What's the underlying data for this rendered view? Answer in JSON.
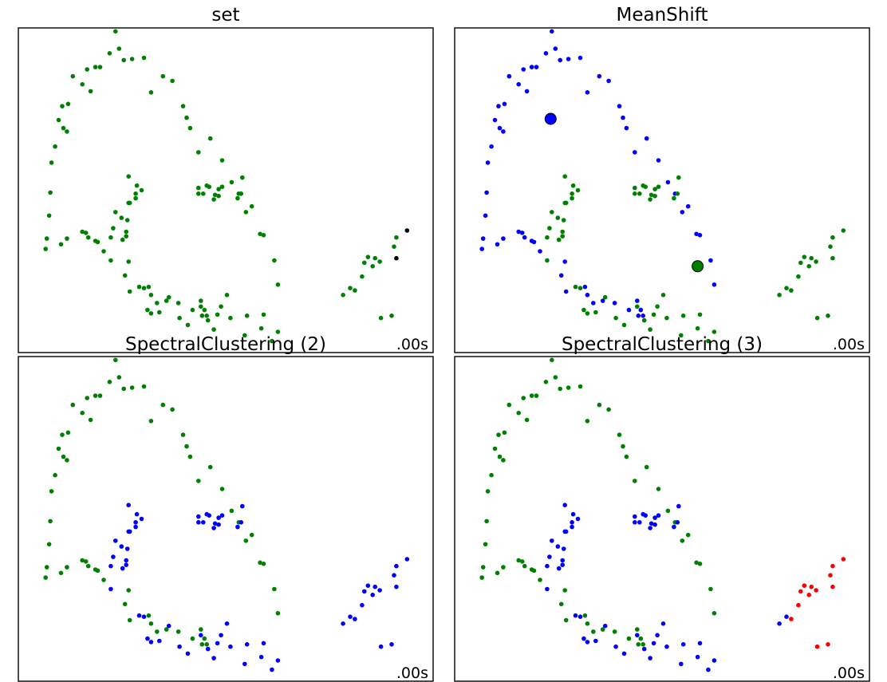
{
  "figure": {
    "background": "#ffffff"
  },
  "colors": {
    "green": "#008000",
    "blue": "#0000ff",
    "red": "#ff0000"
  },
  "points": {
    "x": [
      -0.97,
      -0.96,
      -0.94,
      -0.93,
      -0.92,
      -0.89,
      -0.86,
      -0.83,
      -0.82,
      -0.78,
      -0.74,
      -0.66,
      -0.62,
      -0.59,
      -0.55,
      -0.51,
      -0.43,
      -0.38,
      -0.35,
      -0.31,
      -0.24,
      -0.14,
      -0.08,
      0.02,
      0.1,
      0.19,
      0.22,
      0.25,
      0.32,
      0.42,
      0.52,
      0.6,
      0.66,
      0.72,
      0.77,
      0.84,
      0.87,
      0.96,
      0.99,
      -0.84,
      -0.79,
      -0.79,
      -0.66,
      -0.63,
      -0.61,
      -0.55,
      -0.53,
      -0.48,
      -0.3,
      -0.27,
      -0.26,
      -0.1,
      -0.08,
      -0.03,
      0.05,
      0.15,
      0.27,
      0.34,
      0.35,
      0.37,
      0.39,
      -0.42,
      -0.28,
      -0.27,
      -0.27,
      -0.18,
      -0.14,
      -0.11,
      -0.08,
      -0.01,
      0.07,
      0.16,
      0.23,
      0.34,
      0.4,
      0.45,
      0.48,
      0.51,
      0.56,
      0.59,
      0.71,
      0.73,
      0.85,
      0.87,
      0.94,
      0.99,
      -0.42,
      -0.4,
      -0.38,
      -0.33,
      -0.32,
      -0.29,
      -0.29,
      -0.26,
      -0.21,
      -0.21,
      -0.2,
      -0.16,
      0.32,
      0.32,
      0.36,
      0.39,
      0.41,
      0.45,
      0.46,
      0.49,
      0.49,
      0.52,
      0.65,
      0.68,
      0.69,
      1.54,
      1.6,
      1.64,
      1.7,
      1.72,
      1.75,
      1.79,
      1.81,
      1.85,
      1.86,
      1.95,
      1.97,
      1.99,
      1.99,
      2.08
    ],
    "y": [
      0.28,
      0.37,
      0.57,
      0.77,
      1.03,
      1.17,
      1.4,
      1.52,
      1.33,
      1.54,
      1.78,
      1.71,
      1.84,
      1.65,
      1.86,
      1.86,
      1.98,
      2.17,
      2.02,
      1.92,
      1.93,
      1.94,
      1.64,
      1.78,
      1.74,
      1.52,
      1.42,
      1.33,
      1.12,
      1.24,
      1.05,
      0.86,
      0.76,
      0.6,
      0.65,
      0.41,
      0.4,
      0.18,
      -0.03,
      0.32,
      0.37,
      1.3,
      0.43,
      0.42,
      0.38,
      0.35,
      0.34,
      0.26,
      0.05,
      0.17,
      -0.09,
      -0.05,
      -0.12,
      -0.19,
      -0.17,
      -0.19,
      -0.25,
      -0.17,
      -0.3,
      -0.25,
      -0.3,
      0.18,
      0.53,
      0.68,
      0.91,
      -0.05,
      -0.06,
      -0.25,
      -0.28,
      -0.27,
      -0.14,
      -0.32,
      -0.38,
      -0.22,
      -0.34,
      -0.42,
      -0.29,
      -0.22,
      -0.12,
      -0.32,
      -0.47,
      -0.3,
      -0.41,
      -0.29,
      -0.52,
      -0.44,
      0.38,
      0.46,
      0.6,
      0.55,
      0.36,
      0.43,
      0.39,
      0.68,
      0.72,
      0.76,
      0.83,
      0.79,
      0.76,
      0.81,
      0.76,
      0.83,
      0.82,
      0.71,
      0.75,
      0.8,
      0.74,
      0.82,
      0.72,
      0.76,
      0.9,
      -0.12,
      -0.06,
      -0.08,
      0.04,
      0.16,
      0.21,
      0.13,
      0.2,
      0.17,
      -0.32,
      -0.3,
      0.3,
      0.38,
      0.2,
      0.44
    ],
    "labels": {
      "set": [
        "green",
        "green",
        "green",
        "green",
        "green",
        "green",
        "green",
        "green",
        "green",
        "green",
        "green",
        "green",
        "green",
        "green",
        "green",
        "green",
        "green",
        "green",
        "green",
        "green",
        "green",
        "green",
        "green",
        "green",
        "green",
        "green",
        "green",
        "green",
        "green",
        "green",
        "green",
        "green",
        "green",
        "green",
        "green",
        "green",
        "green",
        "green",
        "green",
        "green",
        "green",
        "green",
        "green",
        "green",
        "green",
        "green",
        "green",
        "green",
        "green",
        "green",
        "green",
        "green",
        "green",
        "green",
        "green",
        "green",
        "green",
        "green",
        "green",
        "green",
        "green",
        "green",
        "green",
        "green",
        "green",
        "green",
        "green",
        "green",
        "green",
        "green",
        "green",
        "green",
        "green",
        "green",
        "green",
        "green",
        "green",
        "green",
        "green",
        "green",
        "green",
        "green",
        "green",
        "green",
        "green",
        "green",
        "green",
        "green",
        "green",
        "green",
        "green",
        "green",
        "green",
        "green",
        "green",
        "green",
        "green",
        "green",
        "green",
        "green",
        "green",
        "green",
        "green",
        "green",
        "green",
        "green",
        "green",
        "green",
        "green",
        "green",
        "green",
        "green",
        "green",
        "green",
        "green",
        "green",
        "green",
        "green",
        "green",
        "green",
        "green",
        "green",
        "green",
        "green"
      ],
      "meanshift": [
        "blue",
        "blue",
        "blue",
        "blue",
        "blue",
        "blue",
        "blue",
        "blue",
        "blue",
        "blue",
        "blue",
        "blue",
        "blue",
        "blue",
        "blue",
        "blue",
        "blue",
        "blue",
        "blue",
        "blue",
        "blue",
        "blue",
        "blue",
        "blue",
        "blue",
        "blue",
        "blue",
        "blue",
        "blue",
        "blue",
        "blue",
        "blue",
        "blue",
        "blue",
        "blue",
        "blue",
        "blue",
        "blue",
        "blue",
        "blue",
        "blue",
        "blue",
        "blue",
        "blue",
        "blue",
        "blue",
        "blue",
        "blue",
        "blue",
        "blue",
        "blue",
        "blue",
        "blue",
        "blue",
        "blue",
        "blue",
        "blue",
        "blue",
        "blue",
        "blue",
        "blue",
        "green",
        "green",
        "green",
        "green",
        "green",
        "green",
        "green",
        "green",
        "green",
        "green",
        "green",
        "green",
        "green",
        "green",
        "green",
        "green",
        "green",
        "green",
        "green",
        "green",
        "green",
        "green",
        "green",
        "green",
        "green",
        "green",
        "green",
        "green",
        "green",
        "green",
        "green",
        "green",
        "green",
        "green",
        "green",
        "green",
        "green",
        "green",
        "green",
        "green",
        "green",
        "green",
        "green",
        "green",
        "green",
        "green",
        "green",
        "green",
        "green",
        "green",
        "green",
        "green",
        "green",
        "green",
        "green",
        "green",
        "green",
        "green",
        "green",
        "green",
        "green",
        "green",
        "green",
        "green",
        "green"
      ],
      "spectral2": [
        "green",
        "green",
        "green",
        "green",
        "green",
        "green",
        "green",
        "green",
        "green",
        "green",
        "green",
        "green",
        "green",
        "green",
        "green",
        "green",
        "green",
        "green",
        "green",
        "green",
        "green",
        "green",
        "green",
        "green",
        "green",
        "green",
        "green",
        "green",
        "green",
        "green",
        "green",
        "green",
        "green",
        "green",
        "green",
        "green",
        "green",
        "green",
        "green",
        "green",
        "green",
        "green",
        "green",
        "green",
        "green",
        "green",
        "green",
        "green",
        "green",
        "green",
        "green",
        "green",
        "green",
        "green",
        "green",
        "green",
        "green",
        "green",
        "green",
        "green",
        "green",
        "blue",
        "blue",
        "blue",
        "blue",
        "blue",
        "blue",
        "blue",
        "blue",
        "blue",
        "blue",
        "blue",
        "blue",
        "blue",
        "blue",
        "blue",
        "blue",
        "blue",
        "blue",
        "blue",
        "blue",
        "blue",
        "blue",
        "blue",
        "blue",
        "blue",
        "blue",
        "blue",
        "blue",
        "blue",
        "blue",
        "blue",
        "blue",
        "blue",
        "blue",
        "blue",
        "blue",
        "blue",
        "blue",
        "blue",
        "blue",
        "blue",
        "blue",
        "blue",
        "blue",
        "blue",
        "blue",
        "blue",
        "blue",
        "blue",
        "blue",
        "blue",
        "blue",
        "blue",
        "blue",
        "blue",
        "blue",
        "blue",
        "blue",
        "blue",
        "blue",
        "blue",
        "blue",
        "blue",
        "blue",
        "blue"
      ],
      "spectral3": [
        "green",
        "green",
        "green",
        "green",
        "green",
        "green",
        "green",
        "green",
        "green",
        "green",
        "green",
        "green",
        "green",
        "green",
        "green",
        "green",
        "green",
        "green",
        "green",
        "green",
        "green",
        "green",
        "green",
        "green",
        "green",
        "green",
        "green",
        "green",
        "green",
        "green",
        "green",
        "green",
        "green",
        "green",
        "green",
        "green",
        "green",
        "green",
        "green",
        "green",
        "green",
        "green",
        "green",
        "green",
        "green",
        "green",
        "green",
        "green",
        "green",
        "green",
        "green",
        "green",
        "green",
        "green",
        "green",
        "green",
        "green",
        "green",
        "green",
        "green",
        "green",
        "blue",
        "blue",
        "blue",
        "blue",
        "blue",
        "blue",
        "blue",
        "blue",
        "blue",
        "blue",
        "blue",
        "blue",
        "blue",
        "blue",
        "blue",
        "blue",
        "blue",
        "blue",
        "blue",
        "blue",
        "blue",
        "blue",
        "blue",
        "blue",
        "blue",
        "blue",
        "blue",
        "blue",
        "blue",
        "blue",
        "blue",
        "blue",
        "blue",
        "blue",
        "blue",
        "blue",
        "blue",
        "blue",
        "blue",
        "blue",
        "blue",
        "blue",
        "blue",
        "blue",
        "blue",
        "blue",
        "blue",
        "blue",
        "blue",
        "blue",
        "blue",
        "blue",
        "red",
        "red",
        "red",
        "red",
        "red",
        "red",
        "red",
        "red",
        "red",
        "red",
        "red",
        "red",
        "red",
        "red"
      ]
    }
  },
  "chart_data": [
    {
      "type": "scatter",
      "title": "set",
      "time_label": ".00s",
      "xlim": [
        -1.2,
        2.3
      ],
      "ylim": [
        -0.62,
        2.2
      ],
      "labels_key": "set",
      "centers": []
    },
    {
      "type": "scatter",
      "title": "MeanShift",
      "time_label": ".00s",
      "xlim": [
        -1.2,
        2.3
      ],
      "ylim": [
        -0.62,
        2.2
      ],
      "labels_key": "meanshift",
      "centers": [
        {
          "x": -0.39,
          "y": 1.41,
          "color": "blue"
        },
        {
          "x": 0.85,
          "y": 0.13,
          "color": "green"
        }
      ]
    },
    {
      "type": "scatter",
      "title": "SpectralClustering (2)",
      "time_label": ".00s",
      "xlim": [
        -1.2,
        2.3
      ],
      "ylim": [
        -0.62,
        2.2
      ],
      "labels_key": "spectral2",
      "centers": []
    },
    {
      "type": "scatter",
      "title": "SpectralClustering (3)",
      "time_label": ".00s",
      "xlim": [
        -1.2,
        2.3
      ],
      "ylim": [
        -0.62,
        2.2
      ],
      "labels_key": "spectral3",
      "centers": []
    }
  ]
}
